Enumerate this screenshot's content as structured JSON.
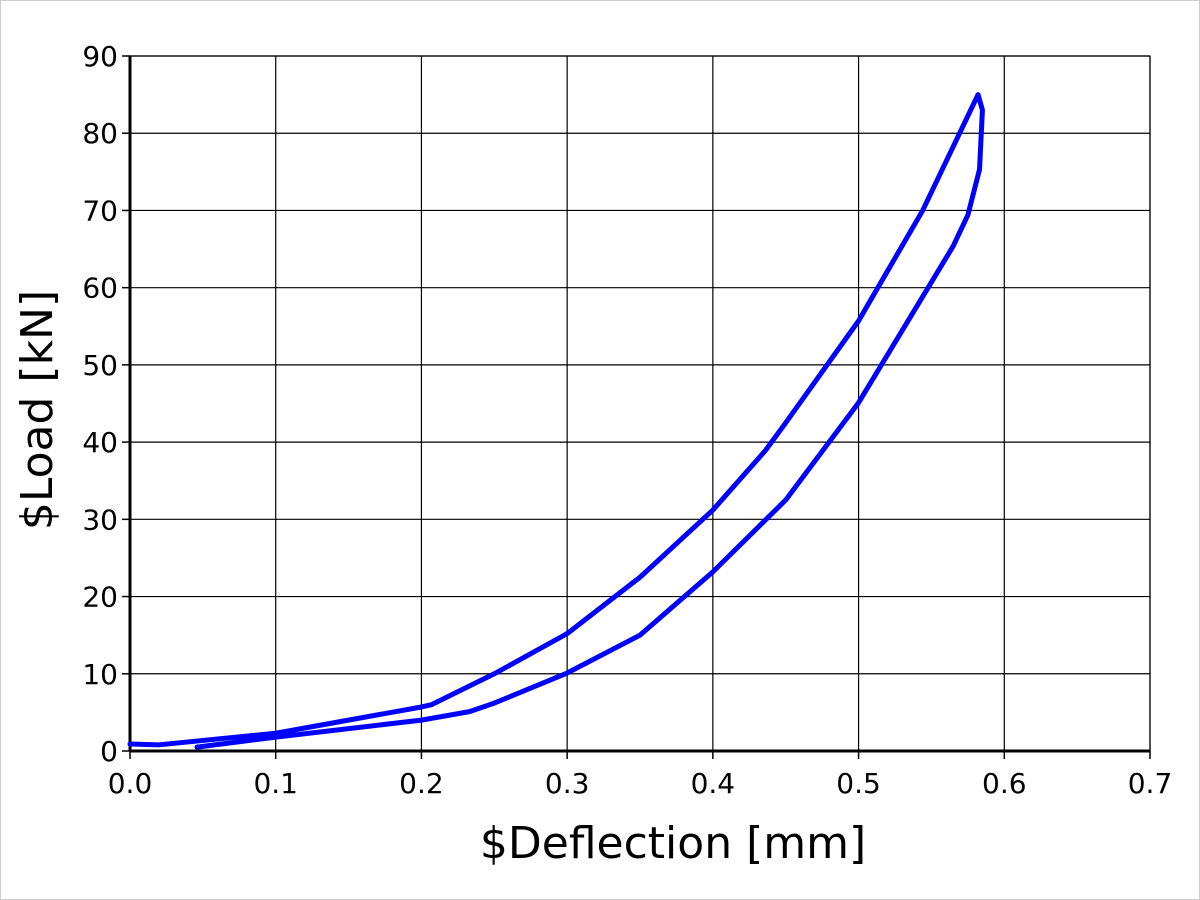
{
  "chart_data": {
    "type": "line",
    "xlabel": "$Deflection [mm]",
    "ylabel": "$Load [kN]",
    "x": [
      0.0,
      0.02,
      0.1,
      0.2,
      0.207,
      0.25,
      0.3,
      0.35,
      0.4,
      0.436,
      0.45,
      0.5,
      0.544,
      0.582,
      0.585,
      0.583,
      0.575,
      0.565,
      0.549,
      0.5,
      0.45,
      0.4,
      0.35,
      0.3,
      0.25,
      0.233,
      0.2,
      0.1,
      0.046
    ],
    "series": [
      {
        "color": "#0000ff",
        "values": [
          0.9,
          0.8,
          2.3,
          5.7,
          6.0,
          10.0,
          15.2,
          22.5,
          31.2,
          38.9,
          42.5,
          55.7,
          70.0,
          85.0,
          83.0,
          75.3,
          69.4,
          65.4,
          60.4,
          45.1,
          32.5,
          23.2,
          15.0,
          10.1,
          6.2,
          5.1,
          4.0,
          1.8,
          0.5
        ]
      }
    ],
    "xlim": [
      0,
      0.7
    ],
    "xticks": [
      {
        "value": 0,
        "label": "0.0"
      },
      0.1,
      0.2,
      0.3,
      0.4,
      0.5,
      0.6,
      0.7
    ],
    "ylim": [
      0,
      90
    ],
    "yticks": [
      0,
      10,
      20,
      30,
      40,
      50,
      60,
      70,
      80,
      90
    ],
    "grid": true
  }
}
